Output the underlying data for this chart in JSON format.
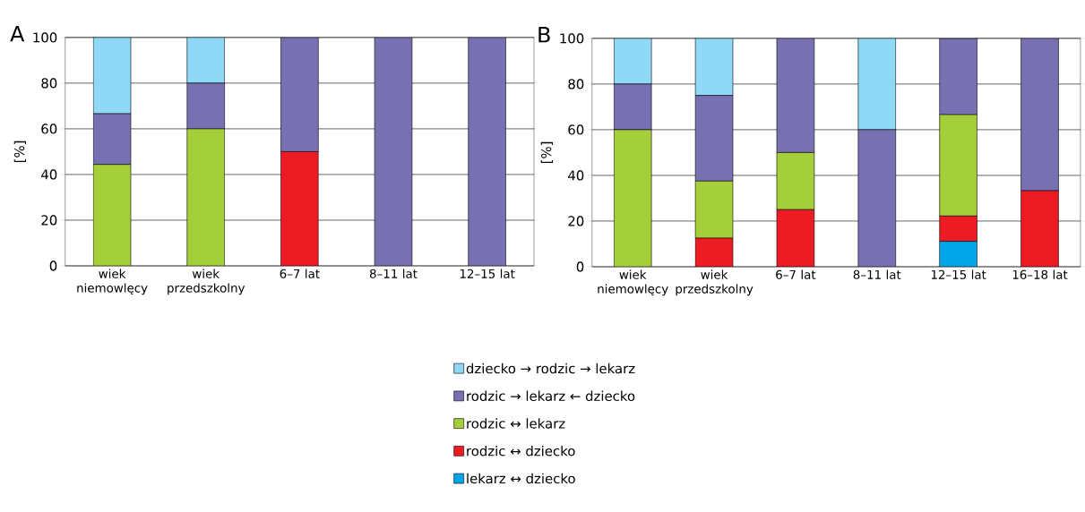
{
  "chart_data": [
    {
      "type": "bar",
      "title": "A",
      "ylabel": "[%]",
      "stacked": true,
      "grid": "y",
      "legend": false,
      "ylim": [
        0,
        100
      ],
      "yticks": [
        0,
        20,
        40,
        60,
        80,
        100
      ],
      "categories": [
        "wiek niemowlęcy",
        "wiek przedszkolny",
        "6–7 lat",
        "8–11 lat",
        "12–15 lat"
      ],
      "series": [
        {
          "color": "#00a6e8",
          "values": [
            0,
            0,
            0,
            0,
            0
          ]
        },
        {
          "color": "#ed1c24",
          "values": [
            0,
            0,
            50,
            0,
            0
          ]
        },
        {
          "color": "#a5cf3a",
          "values": [
            44.4,
            60,
            0,
            0,
            0
          ]
        },
        {
          "color": "#7771b4",
          "values": [
            22.2,
            20,
            50,
            100,
            100
          ]
        },
        {
          "color": "#8fd9f7",
          "values": [
            33.4,
            20,
            0,
            0,
            0
          ]
        }
      ]
    },
    {
      "type": "bar",
      "title": "B",
      "ylabel": "[%]",
      "stacked": true,
      "grid": "y",
      "legend": "bottom",
      "ylim": [
        0,
        100
      ],
      "yticks": [
        0,
        20,
        40,
        60,
        80,
        100
      ],
      "categories": [
        "wiek niemowlęcy",
        "wiek przedszkolny",
        "6–7 lat",
        "8–11 lat",
        "12–15 lat",
        "16–18 lat"
      ],
      "series": [
        {
          "name": "lekarz ↔ dziecko",
          "color": "#00a6e8",
          "values": [
            0,
            0,
            0,
            0,
            11.1,
            0
          ]
        },
        {
          "name": "rodzic ↔ dziecko",
          "color": "#ed1c24",
          "values": [
            0,
            12.5,
            25,
            0,
            11.1,
            33.3
          ]
        },
        {
          "name": "rodzic ↔ lekarz",
          "color": "#a5cf3a",
          "values": [
            60,
            25,
            25,
            0,
            44.4,
            0
          ]
        },
        {
          "name": "rodzic → lekarz ← dziecko",
          "color": "#7771b4",
          "values": [
            20,
            37.5,
            50,
            60,
            33.3,
            66.7
          ]
        },
        {
          "name": "dziecko → rodzic → lekarz",
          "color": "#8fd9f7",
          "values": [
            20,
            25,
            0,
            40,
            0,
            0
          ]
        }
      ]
    }
  ]
}
